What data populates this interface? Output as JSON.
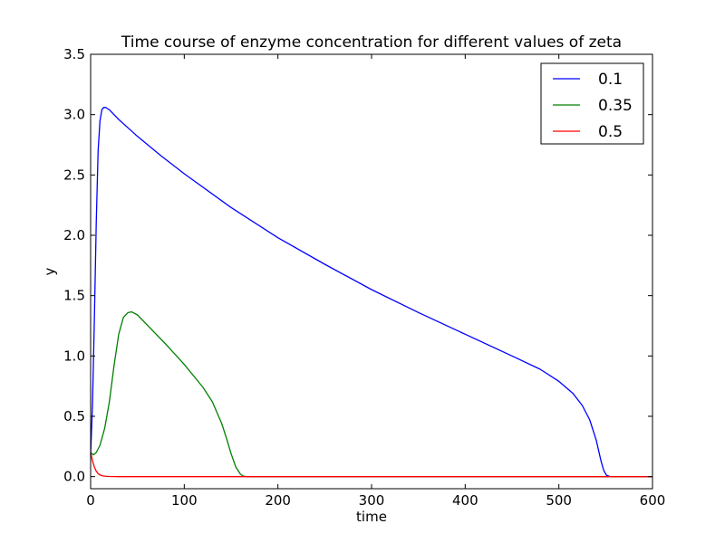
{
  "chart_data": {
    "type": "line",
    "title": "Time course of enzyme concentration for different values of zeta",
    "xlabel": "time",
    "ylabel": "y",
    "xlim": [
      0,
      600
    ],
    "ylim": [
      -0.1,
      3.5
    ],
    "xticks": [
      0,
      100,
      200,
      300,
      400,
      500,
      600
    ],
    "xtick_labels": [
      "0",
      "100",
      "200",
      "300",
      "400",
      "500",
      "600"
    ],
    "yticks": [
      0.0,
      0.5,
      1.0,
      1.5,
      2.0,
      2.5,
      3.0,
      3.5
    ],
    "ytick_labels": [
      "0.0",
      "0.5",
      "1.0",
      "1.5",
      "2.0",
      "2.5",
      "3.0",
      "3.5"
    ],
    "grid": false,
    "legend_position": "top-right",
    "series": [
      {
        "name": "0.1",
        "color": "#0000ff",
        "x": [
          0,
          2,
          4,
          6,
          8,
          10,
          12,
          14,
          16,
          18,
          20,
          25,
          30,
          40,
          50,
          75,
          100,
          150,
          200,
          250,
          300,
          350,
          400,
          450,
          480,
          500,
          515,
          525,
          533,
          540,
          545,
          548,
          551,
          555,
          560,
          600
        ],
        "y": [
          0.18,
          0.6,
          1.3,
          2.1,
          2.7,
          2.95,
          3.04,
          3.06,
          3.06,
          3.05,
          3.04,
          3.0,
          2.96,
          2.89,
          2.82,
          2.66,
          2.51,
          2.23,
          1.98,
          1.76,
          1.55,
          1.36,
          1.18,
          1.0,
          0.89,
          0.79,
          0.69,
          0.59,
          0.47,
          0.3,
          0.13,
          0.05,
          0.01,
          0.0,
          0.0,
          0.0
        ]
      },
      {
        "name": "0.35",
        "color": "#008000",
        "x": [
          0,
          3,
          6,
          10,
          15,
          20,
          25,
          30,
          35,
          40,
          44,
          50,
          60,
          80,
          100,
          120,
          130,
          140,
          145,
          150,
          155,
          160,
          163,
          166,
          170,
          200,
          600
        ],
        "y": [
          0.2,
          0.18,
          0.2,
          0.26,
          0.4,
          0.62,
          0.92,
          1.18,
          1.32,
          1.36,
          1.365,
          1.34,
          1.26,
          1.1,
          0.93,
          0.74,
          0.62,
          0.44,
          0.32,
          0.19,
          0.08,
          0.02,
          0.005,
          0.0,
          0.0,
          0.0,
          0.0
        ]
      },
      {
        "name": "0.5",
        "color": "#ff0000",
        "x": [
          0,
          2,
          4,
          6,
          8,
          10,
          13,
          16,
          20,
          30,
          600
        ],
        "y": [
          0.2,
          0.13,
          0.08,
          0.045,
          0.025,
          0.014,
          0.006,
          0.003,
          0.001,
          0.0,
          0.0
        ]
      }
    ]
  }
}
